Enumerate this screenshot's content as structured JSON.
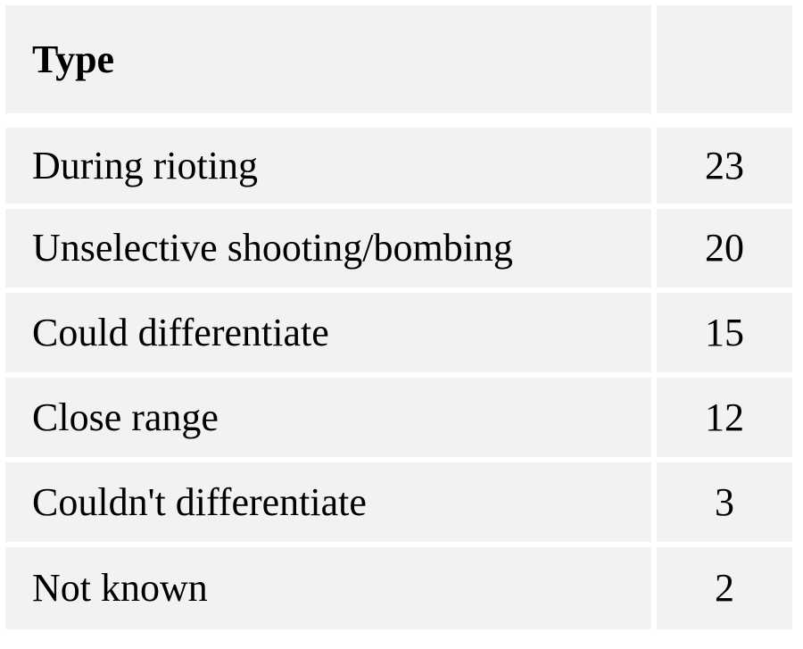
{
  "table": {
    "header": {
      "type_label": "Type",
      "count_label": ""
    },
    "rows": [
      {
        "type": "During rioting",
        "count": "23"
      },
      {
        "type": "Unselective shooting/bombing",
        "count": "20"
      },
      {
        "type": "Could differentiate",
        "count": "15"
      },
      {
        "type": "Close range",
        "count": "12"
      },
      {
        "type": "Couldn't differentiate",
        "count": "3"
      },
      {
        "type": "Not known",
        "count": "2"
      }
    ]
  }
}
